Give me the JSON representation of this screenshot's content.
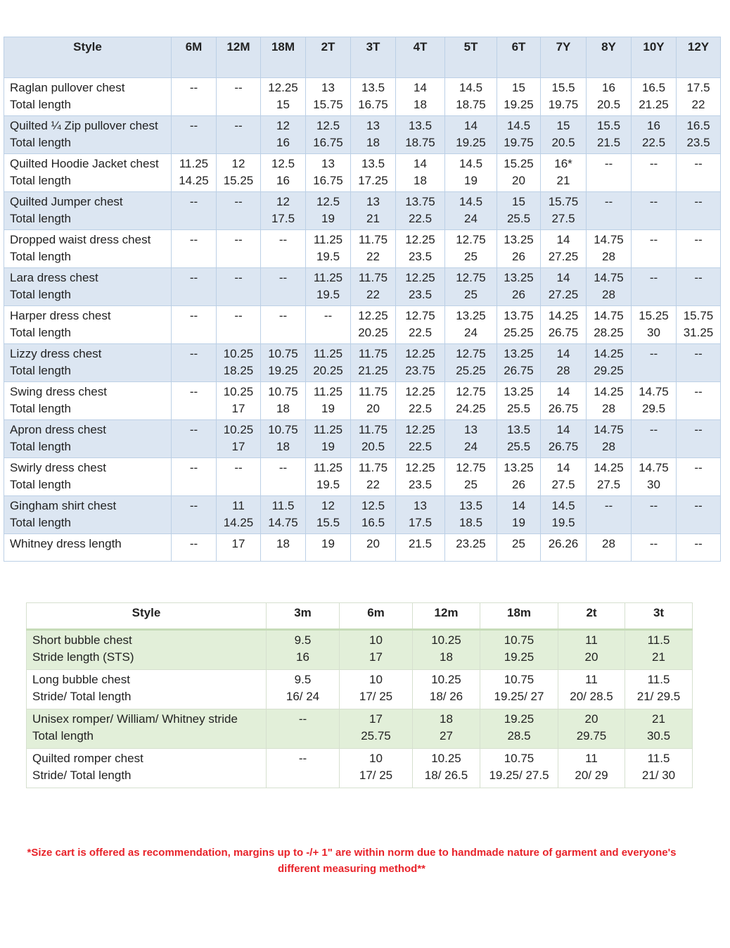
{
  "table1": {
    "headers": [
      "Style",
      "6M",
      "12M",
      "18M",
      "2T",
      "3T",
      "4T",
      "5T",
      "6T",
      "7Y",
      "8Y",
      "10Y",
      "12Y"
    ],
    "rows": [
      {
        "label": [
          "Raglan pullover chest",
          "Total length"
        ],
        "values": [
          [
            "--"
          ],
          [
            "--"
          ],
          [
            "12.25",
            "15"
          ],
          [
            "13",
            "15.75"
          ],
          [
            "13.5",
            "16.75"
          ],
          [
            "14",
            "18"
          ],
          [
            "14.5",
            "18.75"
          ],
          [
            "15",
            "19.25"
          ],
          [
            "15.5",
            "19.75"
          ],
          [
            "16",
            "20.5"
          ],
          [
            "16.5",
            "21.25"
          ],
          [
            "17.5",
            "22"
          ]
        ]
      },
      {
        "label": [
          "Quilted ¼ Zip pullover chest",
          "Total length"
        ],
        "values": [
          [
            "--"
          ],
          [
            "--"
          ],
          [
            "12",
            "16"
          ],
          [
            "12.5",
            "16.75"
          ],
          [
            "13",
            "18"
          ],
          [
            "13.5",
            "18.75"
          ],
          [
            "14",
            "19.25"
          ],
          [
            "14.5",
            "19.75"
          ],
          [
            "15",
            "20.5"
          ],
          [
            "15.5",
            "21.5"
          ],
          [
            "16",
            "22.5"
          ],
          [
            "16.5",
            "23.5"
          ]
        ]
      },
      {
        "label": [
          "Quilted Hoodie Jacket chest",
          "Total length"
        ],
        "values": [
          [
            "11.25",
            "14.25"
          ],
          [
            "12",
            "15.25"
          ],
          [
            "12.5",
            "16"
          ],
          [
            "13",
            "16.75"
          ],
          [
            "13.5",
            "17.25"
          ],
          [
            "14",
            "18"
          ],
          [
            "14.5",
            "19"
          ],
          [
            "15.25",
            "20"
          ],
          [
            "16*",
            "21"
          ],
          [
            "--"
          ],
          [
            "--"
          ],
          [
            "--"
          ]
        ]
      },
      {
        "label": [
          "Quilted Jumper chest",
          "Total length"
        ],
        "values": [
          [
            "--"
          ],
          [
            "--"
          ],
          [
            "12",
            "17.5"
          ],
          [
            "12.5",
            "19"
          ],
          [
            "13",
            "21"
          ],
          [
            "13.75",
            "22.5"
          ],
          [
            "14.5",
            "24"
          ],
          [
            "15",
            "25.5"
          ],
          [
            "15.75",
            "27.5"
          ],
          [
            "--"
          ],
          [
            "--"
          ],
          [
            "--"
          ]
        ]
      },
      {
        "label": [
          " Dropped waist dress chest",
          "Total length"
        ],
        "values": [
          [
            "--"
          ],
          [
            "--"
          ],
          [
            "--"
          ],
          [
            "11.25",
            "19.5"
          ],
          [
            "11.75",
            "22"
          ],
          [
            "12.25",
            "23.5"
          ],
          [
            "12.75",
            "25"
          ],
          [
            "13.25",
            "26"
          ],
          [
            "14",
            "27.25"
          ],
          [
            "14.75",
            "28"
          ],
          [
            "--"
          ],
          [
            "--"
          ]
        ]
      },
      {
        "label": [
          "Lara dress chest",
          "Total length"
        ],
        "values": [
          [
            "--"
          ],
          [
            "--"
          ],
          [
            "--"
          ],
          [
            "11.25",
            "19.5"
          ],
          [
            "11.75",
            "22"
          ],
          [
            "12.25",
            "23.5"
          ],
          [
            "12.75",
            "25"
          ],
          [
            "13.25",
            "26"
          ],
          [
            "14",
            "27.25"
          ],
          [
            "14.75",
            "28"
          ],
          [
            "--"
          ],
          [
            "--"
          ]
        ]
      },
      {
        "label": [
          "Harper dress chest",
          "Total length"
        ],
        "values": [
          [
            "--"
          ],
          [
            "--"
          ],
          [
            "--"
          ],
          [
            "--"
          ],
          [
            "12.25",
            "20.25"
          ],
          [
            "12.75",
            "22.5"
          ],
          [
            "13.25",
            "24"
          ],
          [
            "13.75",
            "25.25"
          ],
          [
            "14.25",
            "26.75"
          ],
          [
            "14.75",
            "28.25"
          ],
          [
            "15.25",
            "30"
          ],
          [
            "15.75",
            "31.25"
          ]
        ]
      },
      {
        "label": [
          "Lizzy dress chest",
          "Total length"
        ],
        "values": [
          [
            "--"
          ],
          [
            "10.25",
            "18.25"
          ],
          [
            "10.75",
            "19.25"
          ],
          [
            "11.25",
            "20.25"
          ],
          [
            "11.75",
            "21.25"
          ],
          [
            "12.25",
            "23.75"
          ],
          [
            "12.75",
            "25.25"
          ],
          [
            "13.25",
            "26.75"
          ],
          [
            "14",
            "28"
          ],
          [
            "14.25",
            "29.25"
          ],
          [
            "--"
          ],
          [
            "--"
          ]
        ]
      },
      {
        "label": [
          "Swing dress chest",
          "Total length"
        ],
        "values": [
          [
            "--"
          ],
          [
            "10.25",
            "17"
          ],
          [
            "10.75",
            "18"
          ],
          [
            "11.25",
            "19"
          ],
          [
            "11.75",
            "20"
          ],
          [
            "12.25",
            "22.5"
          ],
          [
            "12.75",
            "24.25"
          ],
          [
            "13.25",
            "25.5"
          ],
          [
            "14",
            "26.75"
          ],
          [
            "14.25",
            "28"
          ],
          [
            "14.75",
            "29.5"
          ],
          [
            "--"
          ]
        ]
      },
      {
        "label": [
          "Apron dress chest",
          "Total length"
        ],
        "values": [
          [
            "--"
          ],
          [
            "10.25",
            "17"
          ],
          [
            "10.75",
            "18"
          ],
          [
            "11.25",
            "19"
          ],
          [
            "11.75",
            "20.5"
          ],
          [
            "12.25",
            "22.5"
          ],
          [
            "13",
            "24"
          ],
          [
            "13.5",
            "25.5"
          ],
          [
            "14",
            "26.75"
          ],
          [
            "14.75",
            "28"
          ],
          [
            "--"
          ],
          [
            "--"
          ]
        ]
      },
      {
        "label": [
          "Swirly dress chest",
          "Total length"
        ],
        "values": [
          [
            "--"
          ],
          [
            "--"
          ],
          [
            "--"
          ],
          [
            "11.25",
            "19.5"
          ],
          [
            "11.75",
            "22"
          ],
          [
            "12.25",
            "23.5"
          ],
          [
            "12.75",
            "25"
          ],
          [
            "13.25",
            "26"
          ],
          [
            "14",
            "27.5"
          ],
          [
            "14.25",
            "27.5"
          ],
          [
            "14.75",
            "30"
          ],
          [
            "--"
          ]
        ]
      },
      {
        "label": [
          "Gingham shirt chest",
          "Total length"
        ],
        "values": [
          [
            "--"
          ],
          [
            "11",
            "14.25"
          ],
          [
            "11.5",
            "14.75"
          ],
          [
            "12",
            "15.5"
          ],
          [
            "12.5",
            "16.5"
          ],
          [
            "13",
            "17.5"
          ],
          [
            "13.5",
            "18.5"
          ],
          [
            "14",
            "19"
          ],
          [
            "14.5",
            "19.5"
          ],
          [
            "--"
          ],
          [
            "--"
          ],
          [
            "--"
          ]
        ]
      },
      {
        "label": [
          "Whitney dress length"
        ],
        "values": [
          [
            "--"
          ],
          [
            "17"
          ],
          [
            "18"
          ],
          [
            "19"
          ],
          [
            "20"
          ],
          [
            "21.5"
          ],
          [
            "23.25"
          ],
          [
            "25"
          ],
          [
            "26.26"
          ],
          [
            "28"
          ],
          [
            "--"
          ],
          [
            "--"
          ]
        ]
      }
    ]
  },
  "table2": {
    "headers": [
      "Style",
      "3m",
      "6m",
      "12m",
      "18m",
      "2t",
      "3t"
    ],
    "rows": [
      {
        "label": [
          "Short bubble chest",
          "Stride length (STS)"
        ],
        "values": [
          [
            "9.5",
            "16"
          ],
          [
            "10",
            "17"
          ],
          [
            "10.25",
            "18"
          ],
          [
            "10.75",
            "19.25"
          ],
          [
            "11",
            "20"
          ],
          [
            "11.5",
            "21"
          ]
        ]
      },
      {
        "label": [
          "Long bubble chest",
          "Stride/ Total length"
        ],
        "values": [
          [
            "9.5",
            "16/ 24"
          ],
          [
            "10",
            "17/ 25"
          ],
          [
            "10.25",
            "18/ 26"
          ],
          [
            "10.75",
            "19.25/ 27"
          ],
          [
            "11",
            "20/ 28.5"
          ],
          [
            "11.5",
            "21/ 29.5"
          ]
        ]
      },
      {
        "label": [
          "Unisex romper/ William/ Whitney stride",
          "Total length"
        ],
        "values": [
          [
            "--"
          ],
          [
            "17",
            "25.75"
          ],
          [
            "18",
            "27"
          ],
          [
            "19.25",
            "28.5"
          ],
          [
            "20",
            "29.75"
          ],
          [
            "21",
            "30.5"
          ]
        ]
      },
      {
        "label": [
          "Quilted romper chest",
          "Stride/ Total length"
        ],
        "values": [
          [
            "--"
          ],
          [
            "10",
            "17/ 25"
          ],
          [
            "10.25",
            "18/ 26.5"
          ],
          [
            "10.75",
            "19.25/ 27.5"
          ],
          [
            "11",
            "20/ 29"
          ],
          [
            "11.5",
            "21/ 30"
          ]
        ]
      }
    ]
  },
  "note": {
    "line1": "*Size cart is offered as recommendation, margins up to -/+ 1\" are within norm due to handmade nature of garment and everyone's",
    "line2": "different measuring method**"
  },
  "colors": {
    "table1_header": "#dbe5f1",
    "table1_stripe": "#dce6f2",
    "table2_stripe": "#e2efd9",
    "note": "#e8232a"
  }
}
